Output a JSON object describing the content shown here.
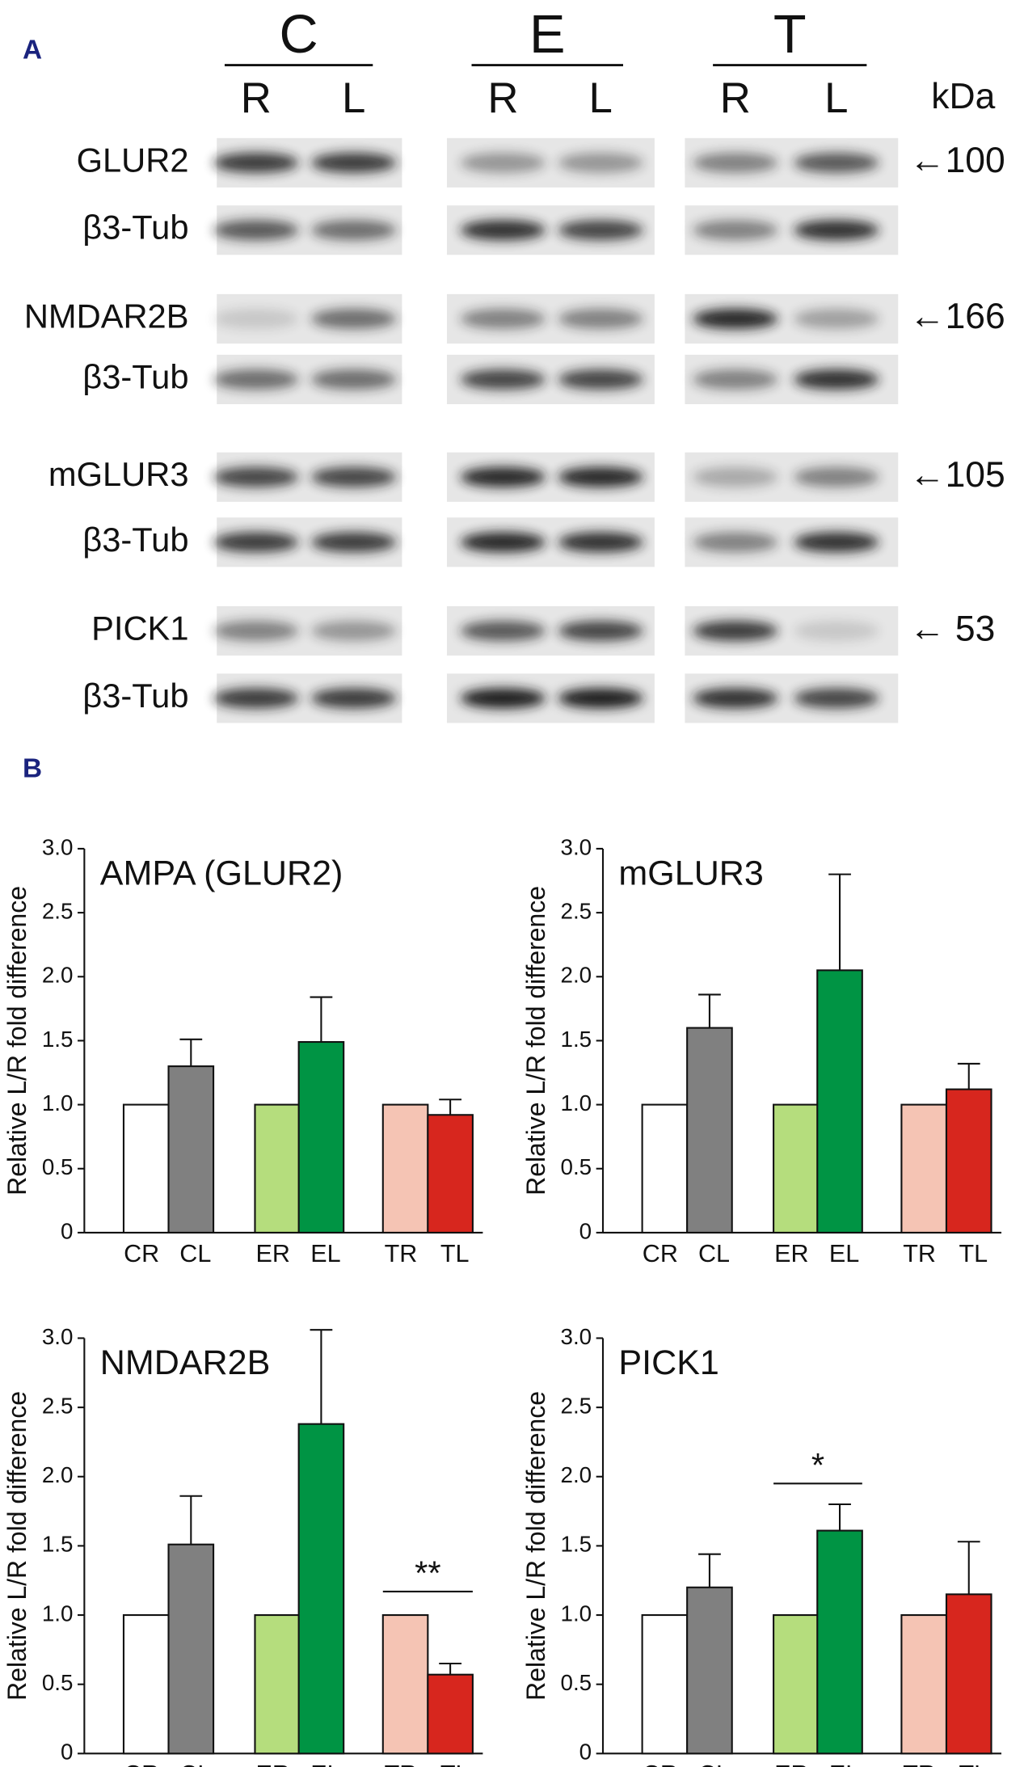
{
  "panel_a": {
    "label": "A",
    "groups": [
      "C",
      "E",
      "T"
    ],
    "lanes": [
      "R",
      "L",
      "R",
      "L",
      "R",
      "L"
    ],
    "unit": "kDa",
    "rows": [
      "GLUR2",
      "β3-Tub",
      "NMDAR2B",
      "β3-Tub",
      "mGLUR3",
      "β3-Tub",
      "PICK1",
      "β3-Tub"
    ],
    "markers": [
      "←100",
      "←166",
      "←105",
      "←  53"
    ]
  },
  "panel_b": {
    "label": "B"
  },
  "chart_data": [
    {
      "type": "bar",
      "title": "AMPA (GLUR2)",
      "y_label": "Relative L/R fold difference",
      "categories": [
        "CR",
        "CL",
        "ER",
        "EL",
        "TR",
        "TL"
      ],
      "values": [
        1,
        1.3,
        1,
        1.49,
        1,
        0.92
      ],
      "errors": [
        null,
        0.21,
        null,
        0.35,
        null,
        0.12
      ],
      "colors": [
        "#ffffff",
        "#808080",
        "#b5dd7d",
        "#009444",
        "#f5c4b4",
        "#d7261e"
      ],
      "ylim": [
        0,
        3
      ],
      "yticks": [
        0,
        0.5,
        {
          "value": 1,
          "label": "1.0"
        },
        1.5,
        {
          "value": 2,
          "label": "2.0"
        },
        2.5,
        {
          "value": 3,
          "label": "3.0"
        }
      ]
    },
    {
      "type": "bar",
      "title": "mGLUR3",
      "y_label": "Relative L/R fold difference",
      "categories": [
        "CR",
        "CL",
        "ER",
        "EL",
        "TR",
        "TL"
      ],
      "values": [
        1,
        1.6,
        1,
        2.05,
        1,
        1.12
      ],
      "errors": [
        null,
        0.26,
        null,
        0.75,
        null,
        0.2
      ],
      "colors": [
        "#ffffff",
        "#808080",
        "#b5dd7d",
        "#009444",
        "#f5c4b4",
        "#d7261e"
      ],
      "ylim": [
        0,
        3
      ],
      "yticks": [
        0,
        0.5,
        {
          "value": 1,
          "label": "1.0"
        },
        1.5,
        {
          "value": 2,
          "label": "2.0"
        },
        2.5,
        {
          "value": 3,
          "label": "3.0"
        }
      ]
    },
    {
      "type": "bar",
      "title": "NMDAR2B",
      "y_label": "Relative L/R fold difference",
      "categories": [
        "CR",
        "CL",
        "ER",
        "EL",
        "TR",
        "TL"
      ],
      "values": [
        1,
        1.51,
        1,
        2.38,
        1,
        0.57
      ],
      "errors": [
        null,
        0.35,
        null,
        0.68,
        null,
        0.08
      ],
      "colors": [
        "#ffffff",
        "#808080",
        "#b5dd7d",
        "#009444",
        "#f5c4b4",
        "#d7261e"
      ],
      "significance": "**",
      "ylim": [
        0,
        3
      ],
      "yticks": [
        0,
        0.5,
        {
          "value": 1,
          "label": "1.0"
        },
        1.5,
        {
          "value": 2,
          "label": "2.0"
        },
        2.5,
        {
          "value": 3,
          "label": "3.0"
        }
      ]
    },
    {
      "type": "bar",
      "title": "PICK1",
      "y_label": "Relative L/R fold difference",
      "categories": [
        "CR",
        "CL",
        "ER",
        "EL",
        "TR",
        "TL"
      ],
      "values": [
        1,
        1.2,
        1,
        1.61,
        1,
        1.15
      ],
      "errors": [
        null,
        0.24,
        null,
        0.19,
        null,
        0.38
      ],
      "colors": [
        "#ffffff",
        "#808080",
        "#b5dd7d",
        "#009444",
        "#f5c4b4",
        "#d7261e"
      ],
      "significance": "*",
      "ylim": [
        0,
        3
      ],
      "yticks": [
        0,
        0.5,
        {
          "value": 1,
          "label": "1.0"
        },
        1.5,
        {
          "value": 2,
          "label": "2.0"
        },
        2.5,
        {
          "value": 3,
          "label": "3.0"
        }
      ]
    }
  ]
}
